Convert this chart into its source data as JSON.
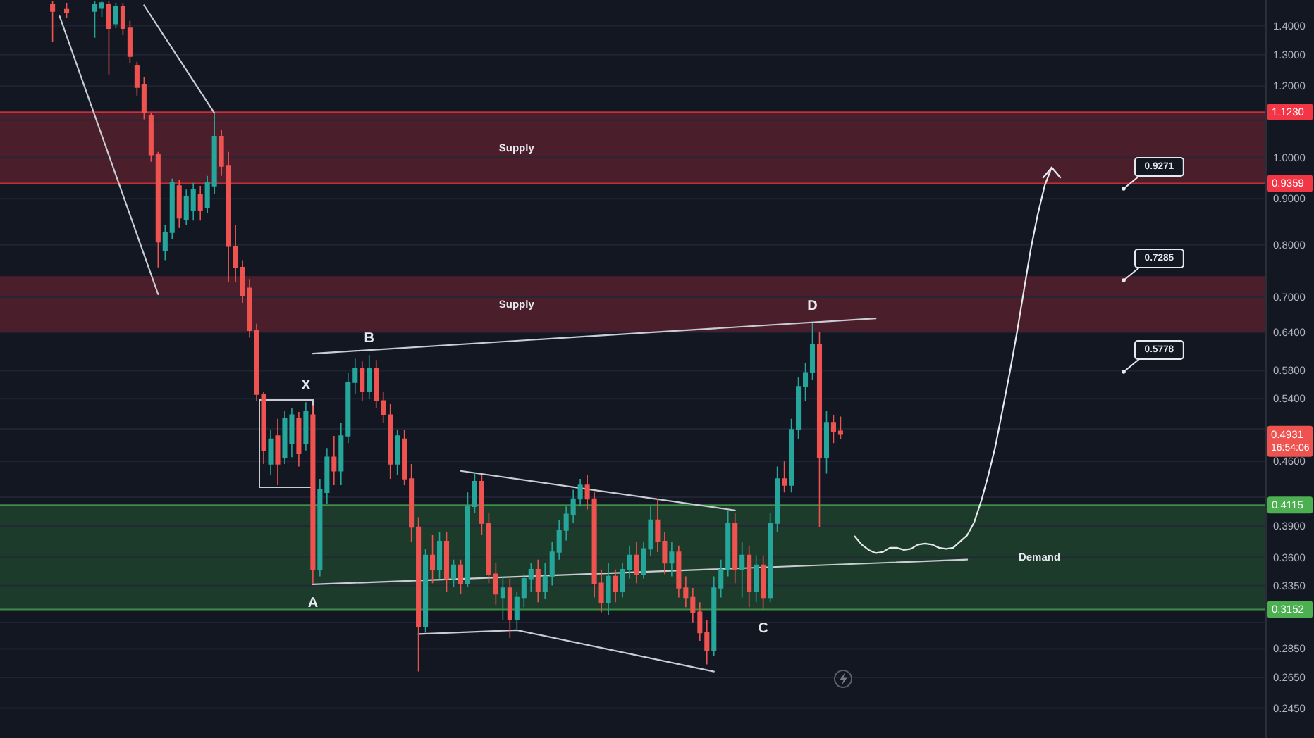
{
  "chart_data": {
    "type": "candlestick",
    "log": true,
    "grid": "y",
    "ylim": [
      0.227,
      1.495
    ],
    "yticks": [
      {
        "value": 1.4,
        "label": "1.4000"
      },
      {
        "value": 1.3,
        "label": "1.3000"
      },
      {
        "value": 1.2,
        "label": "1.2000"
      },
      {
        "value": 1.1,
        "label": null
      },
      {
        "value": 1.0,
        "label": "1.0000"
      },
      {
        "value": 0.9,
        "label": "0.9000"
      },
      {
        "value": 0.8,
        "label": "0.8000"
      },
      {
        "value": 0.7,
        "label": "0.7000"
      },
      {
        "value": 0.64,
        "label": "0.6400"
      },
      {
        "value": 0.58,
        "label": "0.5800"
      },
      {
        "value": 0.54,
        "label": "0.5400"
      },
      {
        "value": 0.5,
        "label": null
      },
      {
        "value": 0.46,
        "label": "0.4600"
      },
      {
        "value": 0.42,
        "label": null
      },
      {
        "value": 0.39,
        "label": "0.3900"
      },
      {
        "value": 0.36,
        "label": "0.3600"
      },
      {
        "value": 0.335,
        "label": "0.3350"
      },
      {
        "value": 0.305,
        "label": null
      },
      {
        "value": 0.285,
        "label": "0.2850"
      },
      {
        "value": 0.265,
        "label": "0.2650"
      },
      {
        "value": 0.245,
        "label": "0.2450"
      }
    ],
    "categories": [
      null,
      null,
      null,
      null,
      null,
      null,
      null,
      null,
      null,
      null,
      null,
      null,
      null,
      null,
      null,
      null,
      null,
      null,
      null,
      null,
      null,
      null,
      null,
      null,
      null,
      null,
      null,
      null,
      null,
      null,
      null,
      null,
      null,
      null,
      null,
      null,
      null,
      null,
      null,
      null,
      null,
      null,
      null,
      null,
      null,
      null,
      null,
      null,
      null,
      null,
      null,
      null,
      null,
      null,
      null,
      null,
      null,
      null,
      null,
      null,
      null,
      null,
      null,
      null,
      null,
      null,
      null,
      null,
      null,
      null,
      null,
      null,
      null,
      null,
      null,
      null,
      null,
      null,
      null,
      null,
      null,
      null,
      null,
      null,
      null,
      null,
      null,
      null,
      null,
      null,
      null,
      null,
      null,
      null,
      null,
      null,
      null,
      null,
      null,
      null,
      null,
      null,
      null,
      null,
      null,
      null,
      null,
      null,
      null,
      null,
      null,
      null,
      null,
      null,
      null,
      null,
      null,
      null,
      null,
      null,
      null,
      null,
      null,
      null,
      null,
      null,
      null,
      null,
      null,
      null,
      null,
      null,
      null,
      null,
      null,
      null,
      null,
      null,
      null,
      null,
      null,
      null,
      null,
      null,
      null,
      null,
      null,
      null,
      null,
      null,
      null,
      null,
      null,
      null,
      null,
      null,
      null,
      null,
      null,
      null,
      null,
      null,
      null,
      null,
      null,
      null,
      null,
      null,
      null,
      null,
      null,
      null,
      null,
      null,
      null,
      null,
      null,
      null,
      null,
      null
    ],
    "ohlc": [
      null,
      null,
      null,
      null,
      null,
      null,
      null,
      [
        1.479,
        1.49,
        1.343,
        1.453
      ],
      null,
      [
        1.459,
        1.484,
        1.427,
        1.448
      ],
      null,
      null,
      null,
      [
        1.453,
        1.49,
        1.357,
        1.479
      ],
      [
        1.464,
        1.49,
        1.432,
        1.484
      ],
      [
        1.479,
        1.49,
        1.236,
        1.391
      ],
      [
        1.407,
        1.484,
        1.391,
        1.469
      ],
      [
        1.469,
        1.484,
        1.367,
        1.391
      ],
      [
        1.391,
        1.417,
        1.272,
        1.295
      ],
      [
        1.263,
        1.277,
        1.171,
        1.196
      ],
      [
        1.205,
        1.227,
        1.102,
        1.121
      ],
      [
        1.113,
        1.121,
        0.989,
        1.007
      ],
      [
        1.007,
        1.014,
        0.755,
        0.806
      ],
      [
        0.789,
        0.841,
        0.769,
        0.826
      ],
      [
        0.826,
        0.947,
        0.812,
        0.937
      ],
      [
        0.93,
        0.944,
        0.835,
        0.857
      ],
      [
        0.854,
        0.921,
        0.841,
        0.904
      ],
      [
        0.873,
        0.937,
        0.851,
        0.921
      ],
      [
        0.91,
        0.93,
        0.851,
        0.873
      ],
      [
        0.879,
        0.954,
        0.867,
        0.937
      ],
      [
        0.93,
        1.12,
        0.91,
        1.055
      ],
      [
        1.055,
        1.074,
        0.954,
        0.978
      ],
      [
        0.978,
        1.014,
        0.728,
        0.797
      ],
      [
        0.797,
        0.841,
        0.728,
        0.755
      ],
      [
        0.755,
        0.769,
        0.69,
        0.703
      ],
      [
        0.716,
        0.733,
        0.631,
        0.643
      ],
      [
        0.643,
        0.654,
        0.537,
        0.546
      ],
      [
        0.546,
        0.55,
        0.457,
        0.473
      ],
      [
        0.457,
        0.499,
        0.444,
        0.487
      ],
      [
        0.491,
        0.513,
        0.433,
        0.457
      ],
      [
        0.465,
        0.523,
        0.457,
        0.513
      ],
      [
        0.482,
        0.527,
        0.465,
        0.518
      ],
      [
        0.513,
        0.522,
        0.454,
        0.47
      ],
      [
        0.482,
        0.535,
        0.473,
        0.523
      ],
      [
        0.518,
        0.531,
        0.336,
        0.349
      ],
      [
        0.349,
        0.44,
        0.343,
        0.428
      ],
      [
        0.425,
        0.476,
        0.413,
        0.465
      ],
      [
        0.465,
        0.491,
        0.433,
        0.449
      ],
      [
        0.449,
        0.508,
        0.433,
        0.491
      ],
      [
        0.491,
        0.577,
        0.482,
        0.563
      ],
      [
        0.563,
        0.598,
        0.546,
        0.583
      ],
      [
        0.583,
        0.594,
        0.537,
        0.55
      ],
      [
        0.55,
        0.604,
        0.54,
        0.583
      ],
      [
        0.583,
        0.596,
        0.527,
        0.537
      ],
      [
        0.537,
        0.55,
        0.508,
        0.518
      ],
      [
        0.518,
        0.533,
        0.44,
        0.457
      ],
      [
        0.457,
        0.499,
        0.444,
        0.491
      ],
      [
        0.487,
        0.499,
        0.433,
        0.44
      ],
      [
        0.44,
        0.457,
        0.375,
        0.389
      ],
      [
        0.389,
        0.399,
        0.269,
        0.302
      ],
      [
        0.302,
        0.368,
        0.297,
        0.362
      ],
      [
        0.362,
        0.381,
        0.337,
        0.349
      ],
      [
        0.349,
        0.384,
        0.341,
        0.375
      ],
      [
        0.375,
        0.384,
        0.33,
        0.341
      ],
      [
        0.341,
        0.358,
        0.334,
        0.353
      ],
      [
        0.353,
        0.358,
        0.328,
        0.337
      ],
      [
        0.337,
        0.425,
        0.334,
        0.41
      ],
      [
        0.41,
        0.447,
        0.403,
        0.437
      ],
      [
        0.437,
        0.444,
        0.381,
        0.393
      ],
      [
        0.393,
        0.403,
        0.337,
        0.345
      ],
      [
        0.345,
        0.355,
        0.319,
        0.328
      ],
      [
        0.325,
        0.343,
        0.307,
        0.333
      ],
      [
        0.333,
        0.341,
        0.293,
        0.307
      ],
      [
        0.307,
        0.33,
        0.3,
        0.325
      ],
      [
        0.325,
        0.345,
        0.317,
        0.341
      ],
      [
        0.341,
        0.355,
        0.33,
        0.349
      ],
      [
        0.349,
        0.358,
        0.321,
        0.33
      ],
      [
        0.33,
        0.355,
        0.324,
        0.343
      ],
      [
        0.343,
        0.375,
        0.335,
        0.365
      ],
      [
        0.365,
        0.396,
        0.358,
        0.386
      ],
      [
        0.386,
        0.41,
        0.376,
        0.402
      ],
      [
        0.402,
        0.428,
        0.393,
        0.418
      ],
      [
        0.418,
        0.44,
        0.41,
        0.433
      ],
      [
        0.433,
        0.444,
        0.407,
        0.418
      ],
      [
        0.418,
        0.425,
        0.325,
        0.337
      ],
      [
        0.337,
        0.349,
        0.313,
        0.321
      ],
      [
        0.321,
        0.355,
        0.311,
        0.343
      ],
      [
        0.343,
        0.349,
        0.321,
        0.33
      ],
      [
        0.33,
        0.355,
        0.325,
        0.349
      ],
      [
        0.349,
        0.371,
        0.341,
        0.362
      ],
      [
        0.362,
        0.375,
        0.337,
        0.345
      ],
      [
        0.345,
        0.375,
        0.341,
        0.368
      ],
      [
        0.368,
        0.41,
        0.361,
        0.396
      ],
      [
        0.396,
        0.418,
        0.365,
        0.375
      ],
      [
        0.375,
        0.384,
        0.345,
        0.355
      ],
      [
        0.355,
        0.375,
        0.343,
        0.365
      ],
      [
        0.365,
        0.371,
        0.325,
        0.333
      ],
      [
        0.333,
        0.343,
        0.317,
        0.325
      ],
      [
        0.325,
        0.333,
        0.305,
        0.313
      ],
      [
        0.313,
        0.321,
        0.291,
        0.297
      ],
      [
        0.297,
        0.307,
        0.274,
        0.284
      ],
      [
        0.284,
        0.343,
        0.28,
        0.333
      ],
      [
        0.333,
        0.358,
        0.325,
        0.349
      ],
      [
        0.349,
        0.406,
        0.343,
        0.393
      ],
      [
        0.393,
        0.403,
        0.337,
        0.349
      ],
      [
        0.349,
        0.375,
        0.325,
        0.362
      ],
      [
        0.362,
        0.371,
        0.317,
        0.33
      ],
      [
        0.33,
        0.362,
        0.321,
        0.353
      ],
      [
        0.353,
        0.362,
        0.315,
        0.325
      ],
      [
        0.325,
        0.403,
        0.321,
        0.393
      ],
      [
        0.393,
        0.454,
        0.384,
        0.44
      ],
      [
        0.44,
        0.46,
        0.425,
        0.433
      ],
      [
        0.433,
        0.513,
        0.425,
        0.499
      ],
      [
        0.499,
        0.571,
        0.487,
        0.557
      ],
      [
        0.557,
        0.591,
        0.537,
        0.577
      ],
      [
        0.577,
        0.656,
        0.567,
        0.62
      ],
      [
        0.62,
        0.64,
        0.389,
        0.465
      ],
      [
        0.465,
        0.523,
        0.446,
        0.508
      ],
      [
        0.508,
        0.518,
        0.482,
        0.497
      ],
      [
        0.497,
        0.516,
        0.487,
        0.4931
      ],
      null,
      null,
      null,
      null,
      null,
      null,
      null,
      null,
      null,
      null,
      null,
      null,
      null,
      null,
      null,
      null,
      null,
      null,
      null,
      null,
      null,
      null,
      null,
      null,
      null,
      null,
      null,
      null,
      null,
      null,
      null,
      null,
      null,
      null,
      null,
      null,
      null,
      null,
      null,
      null,
      null,
      null,
      null,
      null,
      null,
      null,
      null,
      null,
      null,
      null,
      null,
      null,
      null,
      null,
      null,
      null,
      null,
      null,
      null,
      null
    ],
    "colors": [
      null,
      null,
      null,
      null,
      null,
      null,
      null,
      "#ef5350",
      null,
      "#ef5350",
      null,
      null,
      null,
      "#26a69a",
      "#26a69a",
      "#ef5350",
      "#26a69a",
      "#ef5350",
      "#ef5350",
      "#ef5350",
      "#ef5350",
      "#ef5350",
      "#ef5350",
      "#26a69a",
      "#26a69a",
      "#ef5350",
      "#26a69a",
      "#26a69a",
      "#ef5350",
      "#26a69a",
      "#26a69a",
      "#ef5350",
      "#ef5350",
      "#ef5350",
      "#ef5350",
      "#ef5350",
      "#ef5350",
      "#ef5350",
      "#26a69a",
      "#ef5350",
      "#26a69a",
      "#26a69a",
      "#ef5350",
      "#26a69a",
      "#ef5350",
      "#26a69a",
      "#26a69a",
      "#ef5350",
      "#26a69a",
      "#26a69a",
      "#26a69a",
      "#ef5350",
      "#26a69a",
      "#ef5350",
      "#ef5350",
      "#ef5350",
      "#26a69a",
      "#ef5350",
      "#ef5350",
      "#ef5350",
      "#26a69a",
      "#ef5350",
      "#26a69a",
      "#ef5350",
      "#26a69a",
      "#ef5350",
      "#26a69a",
      "#26a69a",
      "#ef5350",
      "#ef5350",
      "#ef5350",
      "#26a69a",
      "#ef5350",
      "#26a69a",
      "#26a69a",
      "#26a69a",
      "#ef5350",
      "#26a69a",
      "#26a69a",
      "#26a69a",
      "#26a69a",
      "#26a69a",
      "#26a69a",
      "#ef5350",
      "#ef5350",
      "#ef5350",
      "#26a69a",
      "#ef5350",
      "#26a69a",
      "#26a69a",
      "#ef5350",
      "#26a69a",
      "#26a69a",
      "#ef5350",
      "#ef5350",
      "#26a69a",
      "#ef5350",
      "#ef5350",
      "#ef5350",
      "#ef5350",
      "#ef5350",
      "#26a69a",
      "#26a69a",
      "#26a69a",
      "#ef5350",
      "#26a69a",
      "#ef5350",
      "#26a69a",
      "#ef5350",
      "#26a69a",
      "#26a69a",
      "#ef5350",
      "#26a69a",
      "#26a69a",
      "#26a69a",
      "#26a69a",
      "#ef5350",
      "#26a69a",
      "#ef5350",
      "#ef5350",
      null,
      null,
      null,
      null,
      null,
      null,
      null,
      null,
      null,
      null,
      null,
      null,
      null,
      null,
      null,
      null,
      null,
      null,
      null,
      null,
      null,
      null,
      null,
      null,
      null,
      null,
      null,
      null,
      null,
      null,
      null,
      null,
      null,
      null,
      null,
      null,
      null,
      null,
      null,
      null,
      null,
      null,
      null,
      null,
      null,
      null,
      null,
      null,
      null,
      null,
      null,
      null,
      null,
      null,
      null,
      null,
      null,
      null,
      null,
      null
    ],
    "series": [
      {
        "type": "line",
        "color": "#c9ccd3",
        "values": [
          null,
          null,
          null,
          null,
          null,
          null,
          null,
          null,
          1.434,
          null,
          null,
          null,
          null,
          null,
          null,
          null,
          null,
          null,
          null,
          null,
          null,
          null,
          0.705,
          null,
          null,
          null,
          null,
          null,
          null,
          null,
          null,
          null,
          null,
          null,
          null,
          null,
          null,
          null,
          null,
          null,
          null,
          null,
          null,
          null,
          null,
          null,
          null,
          null,
          null,
          null,
          null,
          null,
          null,
          null,
          null,
          null,
          null,
          null,
          null,
          null,
          null,
          null,
          null,
          null,
          null,
          null,
          null,
          null,
          null,
          null,
          null,
          null,
          null,
          null,
          null,
          null,
          null,
          null,
          null,
          null,
          null,
          null,
          null,
          null,
          null,
          null,
          null,
          null,
          null,
          null,
          null,
          null,
          null,
          null,
          null,
          null,
          null,
          null,
          null,
          null,
          null,
          null,
          null,
          null,
          null,
          null,
          null,
          null,
          null,
          null,
          null,
          null,
          null,
          null,
          null,
          null,
          null,
          null,
          null,
          null,
          null,
          null,
          null,
          null,
          null,
          null,
          null,
          null,
          null,
          null,
          null,
          null,
          null,
          null,
          null,
          null,
          null,
          null,
          null,
          null,
          null,
          null,
          null,
          null,
          null,
          null,
          null,
          null,
          null,
          null,
          null,
          null,
          null,
          null,
          null,
          null,
          null,
          null,
          null,
          null,
          null,
          null,
          null,
          null,
          null,
          null,
          null,
          null,
          null,
          null,
          null,
          null,
          null,
          null,
          null,
          null,
          null,
          null,
          null,
          null
        ]
      },
      {
        "type": "line",
        "color": "#c9ccd3",
        "values": [
          null,
          null,
          null,
          null,
          null,
          null,
          null,
          null,
          null,
          null,
          null,
          null,
          null,
          null,
          null,
          null,
          null,
          null,
          null,
          null,
          1.475,
          null,
          null,
          null,
          null,
          null,
          null,
          null,
          null,
          null,
          1.12,
          null,
          null,
          null,
          null,
          null,
          null,
          null,
          null,
          null,
          null,
          null,
          null,
          null,
          null,
          null,
          null,
          null,
          null,
          null,
          null,
          null,
          null,
          null,
          null,
          null,
          null,
          null,
          null,
          null,
          null,
          null,
          null,
          null,
          null,
          null,
          null,
          null,
          null,
          null,
          null,
          null,
          null,
          null,
          null,
          null,
          null,
          null,
          null,
          null,
          null,
          null,
          null,
          null,
          null,
          null,
          null,
          null,
          null,
          null,
          null,
          null,
          null,
          null,
          null,
          null,
          null,
          null,
          null,
          null,
          null,
          null,
          null,
          null,
          null,
          null,
          null,
          null,
          null,
          null,
          null,
          null,
          null,
          null,
          null,
          null,
          null,
          null,
          null,
          null,
          null,
          null,
          null,
          null,
          null,
          null,
          null,
          null,
          null,
          null,
          null,
          null,
          null,
          null,
          null,
          null,
          null,
          null,
          null,
          null,
          null,
          null,
          null,
          null,
          null,
          null,
          null,
          null,
          null,
          null,
          null,
          null,
          null,
          null,
          null,
          null,
          null,
          null,
          null,
          null,
          null,
          null,
          null,
          null,
          null,
          null,
          null,
          null,
          null,
          null,
          null,
          null,
          null,
          null,
          null,
          null,
          null,
          null,
          null,
          null
        ]
      },
      {
        "type": "line",
        "color": "#c9ccd3",
        "values": [
          null,
          null,
          null,
          null,
          null,
          null,
          null,
          null,
          null,
          null,
          null,
          null,
          null,
          null,
          null,
          null,
          null,
          null,
          null,
          null,
          null,
          null,
          null,
          null,
          null,
          null,
          null,
          null,
          null,
          null,
          null,
          null,
          null,
          null,
          null,
          null,
          null,
          null,
          null,
          null,
          null,
          null,
          null,
          null,
          0.606,
          null,
          null,
          null,
          null,
          null,
          null,
          null,
          null,
          null,
          null,
          null,
          null,
          null,
          null,
          null,
          null,
          null,
          null,
          null,
          null,
          null,
          null,
          null,
          null,
          null,
          null,
          null,
          null,
          null,
          null,
          null,
          null,
          null,
          null,
          null,
          null,
          null,
          null,
          null,
          null,
          null,
          null,
          null,
          null,
          null,
          null,
          null,
          null,
          null,
          null,
          null,
          null,
          null,
          null,
          null,
          null,
          null,
          null,
          null,
          null,
          null,
          null,
          null,
          null,
          null,
          null,
          null,
          null,
          null,
          null,
          null,
          null,
          null,
          null,
          null,
          null,
          null,
          null,
          null,
          0.663,
          null,
          null,
          null,
          null,
          null,
          null,
          null,
          null,
          null,
          null,
          null,
          null,
          null,
          null,
          null,
          null,
          null,
          null,
          null,
          null,
          null,
          null,
          null,
          null,
          null,
          null,
          null,
          null,
          null,
          null,
          null,
          null,
          null,
          null,
          null,
          null,
          null,
          null,
          null,
          null,
          null,
          null,
          null,
          null,
          null,
          null,
          null,
          null,
          null,
          null,
          null,
          null,
          null,
          null,
          null
        ]
      },
      {
        "type": "line",
        "color": "#c9ccd3",
        "values": [
          null,
          null,
          null,
          null,
          null,
          null,
          null,
          null,
          null,
          null,
          null,
          null,
          null,
          null,
          null,
          null,
          null,
          null,
          null,
          null,
          null,
          null,
          null,
          null,
          null,
          null,
          null,
          null,
          null,
          null,
          null,
          null,
          null,
          null,
          null,
          null,
          null,
          null,
          null,
          null,
          null,
          null,
          null,
          null,
          0.336,
          null,
          null,
          null,
          null,
          null,
          null,
          null,
          null,
          null,
          null,
          null,
          null,
          null,
          null,
          null,
          null,
          null,
          null,
          null,
          null,
          null,
          null,
          null,
          null,
          null,
          null,
          null,
          null,
          null,
          null,
          null,
          null,
          null,
          null,
          null,
          null,
          null,
          null,
          null,
          null,
          null,
          null,
          null,
          null,
          null,
          null,
          null,
          null,
          null,
          null,
          null,
          null,
          null,
          null,
          null,
          null,
          null,
          null,
          null,
          null,
          null,
          null,
          null,
          null,
          null,
          null,
          null,
          null,
          null,
          null,
          null,
          null,
          null,
          null,
          null,
          null,
          null,
          null,
          null,
          null,
          null,
          null,
          null,
          null,
          null,
          null,
          null,
          null,
          null,
          null,
          null,
          null,
          0.358,
          null,
          null,
          null,
          null,
          null,
          null,
          null,
          null,
          null,
          null,
          null,
          null,
          null,
          null,
          null,
          null,
          null,
          null,
          null,
          null,
          null,
          null,
          null,
          null,
          null,
          null,
          null,
          null,
          null,
          null,
          null,
          null,
          null,
          null,
          null,
          null,
          null,
          null,
          null,
          null,
          null,
          null
        ]
      },
      {
        "type": "line",
        "color": "#c9ccd3",
        "values": [
          null,
          null,
          null,
          null,
          null,
          null,
          null,
          null,
          null,
          null,
          null,
          null,
          null,
          null,
          null,
          null,
          null,
          null,
          null,
          null,
          null,
          null,
          null,
          null,
          null,
          null,
          null,
          null,
          null,
          null,
          null,
          null,
          null,
          null,
          null,
          null,
          null,
          null,
          null,
          null,
          null,
          null,
          null,
          null,
          null,
          null,
          null,
          null,
          null,
          null,
          null,
          null,
          null,
          null,
          null,
          null,
          null,
          null,
          null,
          null,
          null,
          null,
          null,
          null,
          null,
          0.449,
          null,
          null,
          null,
          null,
          null,
          null,
          null,
          null,
          null,
          null,
          null,
          null,
          null,
          null,
          null,
          null,
          null,
          null,
          null,
          null,
          null,
          null,
          null,
          null,
          null,
          null,
          null,
          null,
          null,
          null,
          null,
          null,
          null,
          null,
          null,
          null,
          null,
          null,
          0.406,
          null,
          null,
          null,
          null,
          null,
          null,
          null,
          null,
          null,
          null,
          null,
          null,
          null,
          null,
          null,
          null,
          null,
          null,
          null,
          null,
          null,
          null,
          null,
          null,
          null,
          null,
          null,
          null,
          null,
          null,
          null,
          null,
          null,
          null,
          null,
          null,
          null,
          null,
          null,
          null,
          null,
          null,
          null,
          null,
          null,
          null,
          null,
          null,
          null,
          null,
          null,
          null,
          null,
          null,
          null,
          null,
          null,
          null,
          null,
          null,
          null,
          null,
          null,
          null,
          null,
          null,
          null,
          null,
          null,
          null,
          null,
          null,
          null,
          null,
          null
        ]
      },
      {
        "type": "line",
        "color": "#c9ccd3",
        "values": [
          null,
          null,
          null,
          null,
          null,
          null,
          null,
          null,
          null,
          null,
          null,
          null,
          null,
          null,
          null,
          null,
          null,
          null,
          null,
          null,
          null,
          null,
          null,
          null,
          null,
          null,
          null,
          null,
          null,
          null,
          null,
          null,
          null,
          null,
          null,
          null,
          null,
          null,
          null,
          null,
          null,
          null,
          null,
          null,
          null,
          null,
          null,
          null,
          null,
          null,
          null,
          null,
          null,
          null,
          null,
          null,
          null,
          null,
          null,
          0.296,
          null,
          null,
          null,
          null,
          null,
          null,
          null,
          null,
          null,
          null,
          null,
          null,
          null,
          0.299,
          null,
          null,
          null,
          null,
          null,
          null,
          null,
          null,
          null,
          null,
          null,
          null,
          null,
          null,
          null,
          null,
          null,
          null,
          null,
          null,
          null,
          null,
          null,
          null,
          null,
          null,
          null,
          0.269,
          null,
          null,
          null,
          null,
          null,
          null,
          null,
          null,
          null,
          null,
          null,
          null,
          null,
          null,
          null,
          null,
          null,
          null,
          null,
          null,
          null,
          null,
          null,
          null,
          null,
          null,
          null,
          null,
          null,
          null,
          null,
          null,
          null,
          null,
          null,
          null,
          null,
          null,
          null,
          null,
          null,
          null,
          null,
          null,
          null,
          null,
          null,
          null,
          null,
          null,
          null,
          null,
          null,
          null,
          null,
          null,
          null,
          null,
          null,
          null,
          null,
          null,
          null,
          null,
          null,
          null,
          null,
          null,
          null,
          null,
          null,
          null,
          null,
          null,
          null,
          null,
          null,
          null
        ]
      },
      {
        "type": "line",
        "color": "#e6e8ee",
        "values": [
          null,
          null,
          null,
          null,
          null,
          null,
          null,
          null,
          null,
          null,
          null,
          null,
          null,
          null,
          null,
          null,
          null,
          null,
          null,
          null,
          null,
          null,
          null,
          null,
          null,
          null,
          null,
          null,
          null,
          null,
          null,
          null,
          null,
          null,
          null,
          null,
          null,
          null,
          null,
          null,
          null,
          null,
          null,
          null,
          null,
          null,
          null,
          null,
          null,
          null,
          null,
          null,
          null,
          null,
          null,
          null,
          null,
          null,
          null,
          null,
          null,
          null,
          null,
          null,
          null,
          null,
          null,
          null,
          null,
          null,
          null,
          null,
          null,
          null,
          null,
          null,
          null,
          null,
          null,
          null,
          null,
          null,
          null,
          null,
          null,
          null,
          null,
          null,
          null,
          null,
          null,
          null,
          null,
          null,
          null,
          null,
          null,
          null,
          null,
          null,
          null,
          null,
          null,
          null,
          null,
          null,
          null,
          null,
          null,
          null,
          null,
          null,
          null,
          null,
          null,
          null,
          null,
          null,
          null,
          null,
          null,
          0.38,
          0.372,
          0.367,
          0.364,
          0.365,
          0.369,
          0.369,
          0.367,
          0.368,
          0.372,
          0.373,
          0.372,
          0.369,
          0.368,
          0.369,
          0.375,
          0.381,
          0.394,
          0.416,
          0.444,
          0.478,
          0.524,
          0.575,
          0.635,
          0.708,
          0.789,
          0.863,
          0.93,
          0.975,
          null,
          null,
          null,
          null,
          null,
          null,
          null,
          null,
          null,
          null,
          null,
          null,
          null,
          null,
          null,
          null,
          null,
          null,
          null,
          null,
          null,
          null,
          null,
          null,
          null,
          null,
          null,
          null,
          null,
          null
        ]
      }
    ],
    "bands": [
      {
        "axis": "y",
        "from": 0.9359,
        "to": 1.123,
        "label": "Supply",
        "color": "#4a1e2a"
      },
      {
        "axis": "y",
        "from": 0.6407,
        "to": 0.7385,
        "label": "Supply",
        "color": "#4a1e2a"
      },
      {
        "axis": "y",
        "from": 0.3152,
        "to": 0.4115,
        "label": "Demand",
        "color": "#1d3b2b"
      }
    ],
    "ref_lines": [
      {
        "axis": "y",
        "value": 1.123,
        "label": "1.1230",
        "color": "#f23645"
      },
      {
        "axis": "y",
        "value": 0.9359,
        "label": "0.9359",
        "color": "#f23645"
      },
      {
        "axis": "y",
        "value": 0.4115,
        "label": "0.4115",
        "color": "#4caf50"
      },
      {
        "axis": "y",
        "value": 0.3152,
        "label": "0.3152",
        "color": "#4caf50"
      }
    ],
    "annotations": [
      {
        "text": "X",
        "y": 0.535
      },
      {
        "text": "A",
        "y": 0.336
      },
      {
        "text": "B",
        "y": 0.604
      },
      {
        "text": "C",
        "y": 0.315
      },
      {
        "text": "D",
        "y": 0.656
      },
      "0.9271",
      "0.7285",
      "0.5778",
      "0.4931",
      "16:54:06"
    ]
  }
}
